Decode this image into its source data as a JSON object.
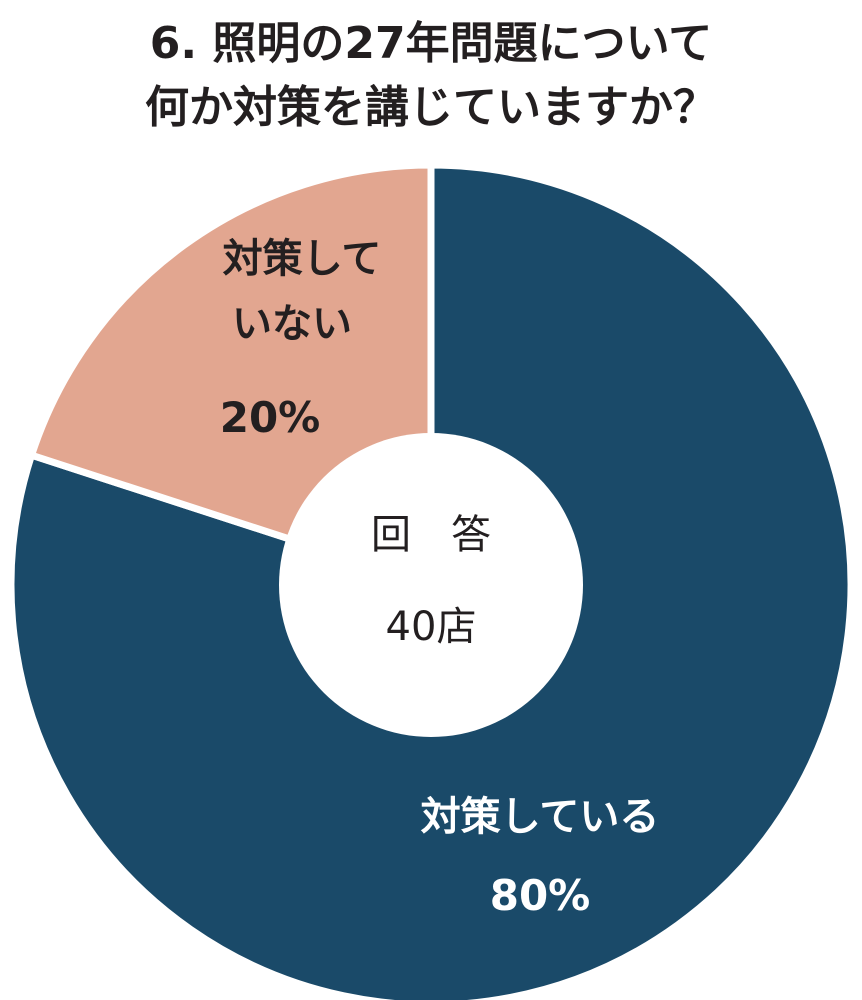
{
  "chart_data": {
    "type": "pie",
    "title": "6. 照明の27年問題について",
    "subtitle": "何か対策を講じていますか？",
    "center_label": "回　答",
    "center_value": "40店",
    "slices": [
      {
        "label": "対策している",
        "value": 80,
        "value_text": "80%",
        "color": "#1a4a69",
        "text_color": "#ffffff"
      },
      {
        "label_lines": [
          "対策して",
          "いない"
        ],
        "value": 20,
        "value_text": "20%",
        "color": "#e2a690",
        "text_color": "#231f20"
      }
    ]
  }
}
